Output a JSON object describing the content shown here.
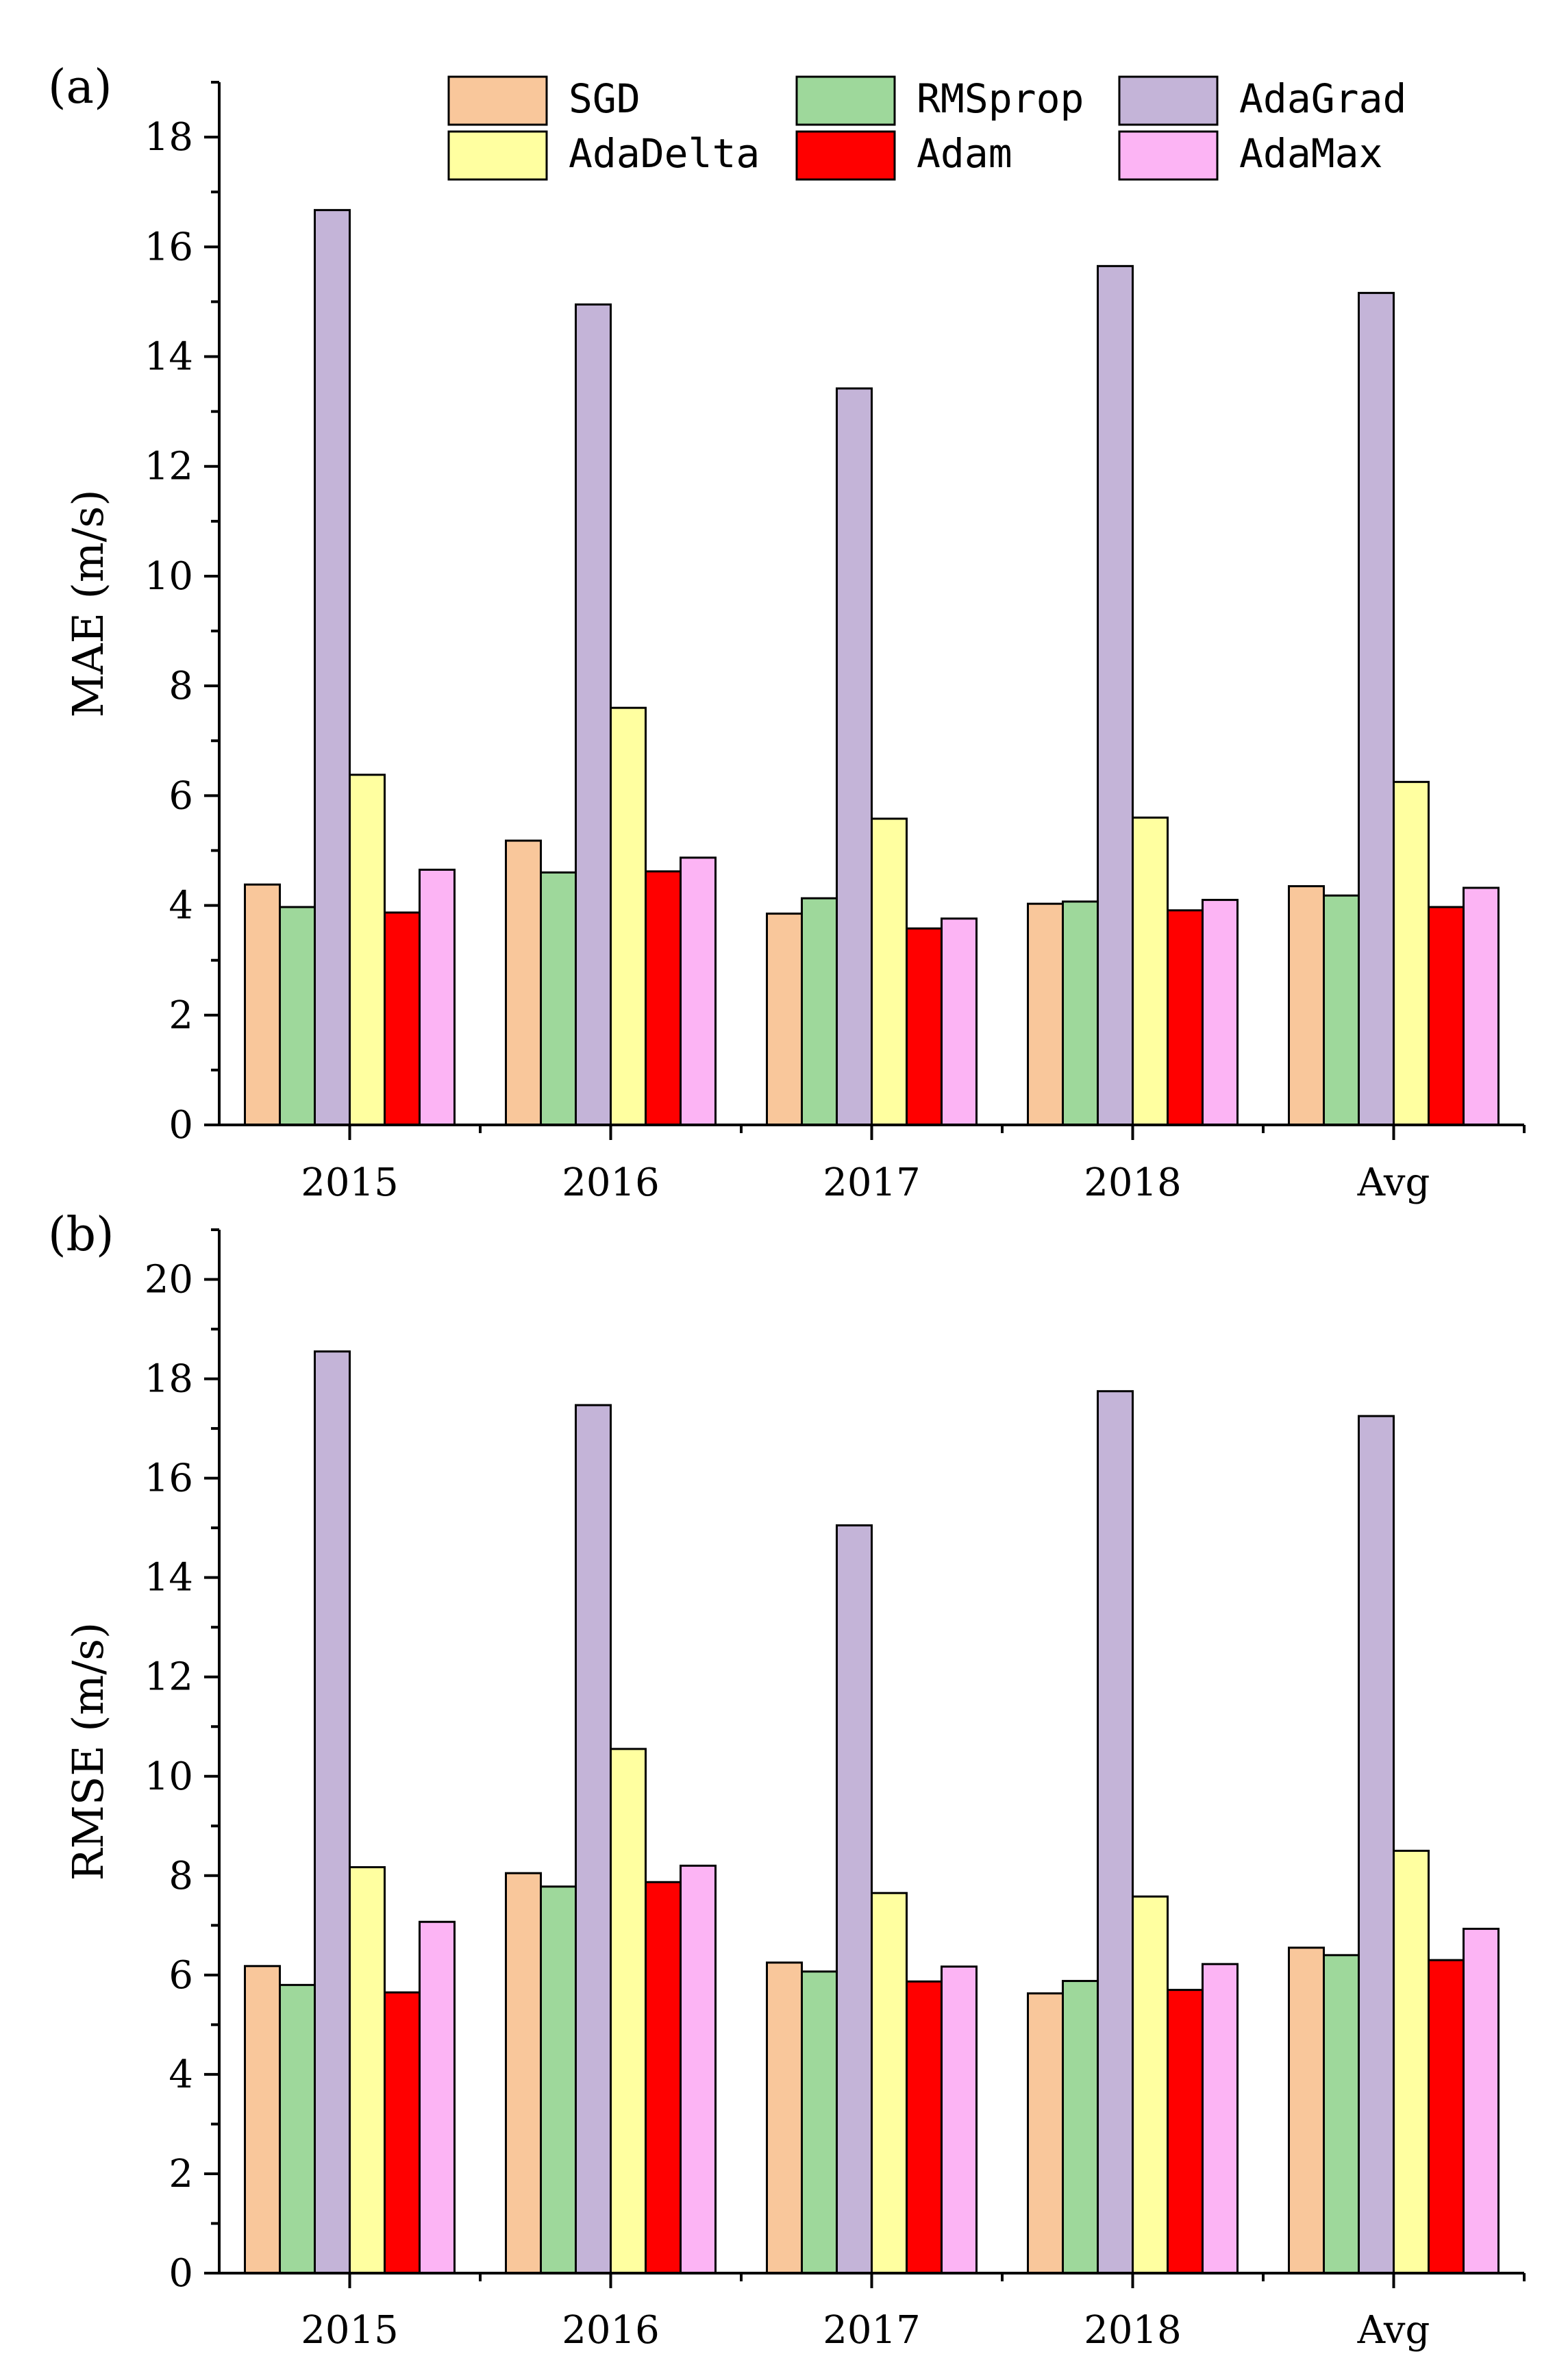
{
  "chart_data": [
    {
      "type": "bar",
      "panel_label": "(a)",
      "categories": [
        "2015",
        "2016",
        "2017",
        "2018",
        "Avg"
      ],
      "ylabel": "MAE (m/s)",
      "xlabel": "",
      "ylim": [
        0,
        19
      ],
      "y_ticks": [
        0,
        2,
        4,
        6,
        8,
        10,
        12,
        14,
        16,
        18
      ],
      "series": [
        {
          "name": "SGD",
          "color": "#F9C79B",
          "values": [
            4.38,
            5.18,
            3.85,
            4.03,
            4.35
          ]
        },
        {
          "name": "RMSprop",
          "color": "#9ED89B",
          "values": [
            3.97,
            4.6,
            4.13,
            4.07,
            4.18
          ]
        },
        {
          "name": "AdaGrad",
          "color": "#C4B4D8",
          "values": [
            16.67,
            14.95,
            13.42,
            15.65,
            15.16
          ]
        },
        {
          "name": "AdaDelta",
          "color": "#FFFFA0",
          "values": [
            6.38,
            7.6,
            5.58,
            5.6,
            6.25
          ]
        },
        {
          "name": "Adam",
          "color": "#FF0000",
          "values": [
            3.87,
            4.62,
            3.58,
            3.91,
            3.97
          ]
        },
        {
          "name": "AdaMax",
          "color": "#FCB4F4",
          "values": [
            4.65,
            4.87,
            3.76,
            4.1,
            4.32
          ]
        }
      ],
      "legend_position": "top"
    },
    {
      "type": "bar",
      "panel_label": "(b)",
      "categories": [
        "2015",
        "2016",
        "2017",
        "2018",
        "Avg"
      ],
      "ylabel": "RMSE (m/s)",
      "xlabel": "",
      "ylim": [
        0,
        21
      ],
      "y_ticks": [
        0,
        2,
        4,
        6,
        8,
        10,
        12,
        14,
        16,
        18,
        20
      ],
      "series": [
        {
          "name": "SGD",
          "color": "#F9C79B",
          "values": [
            6.18,
            8.05,
            6.25,
            5.63,
            6.55
          ]
        },
        {
          "name": "RMSprop",
          "color": "#9ED89B",
          "values": [
            5.8,
            7.78,
            6.07,
            5.88,
            6.4
          ]
        },
        {
          "name": "AdaGrad",
          "color": "#C4B4D8",
          "values": [
            18.55,
            17.47,
            15.05,
            17.75,
            17.25
          ]
        },
        {
          "name": "AdaDelta",
          "color": "#FFFFA0",
          "values": [
            8.17,
            10.55,
            7.65,
            7.58,
            8.5
          ]
        },
        {
          "name": "Adam",
          "color": "#FF0000",
          "values": [
            5.65,
            7.87,
            5.87,
            5.7,
            6.3
          ]
        },
        {
          "name": "AdaMax",
          "color": "#FCB4F4",
          "values": [
            7.07,
            8.2,
            6.17,
            6.22,
            6.93
          ]
        }
      ]
    }
  ]
}
